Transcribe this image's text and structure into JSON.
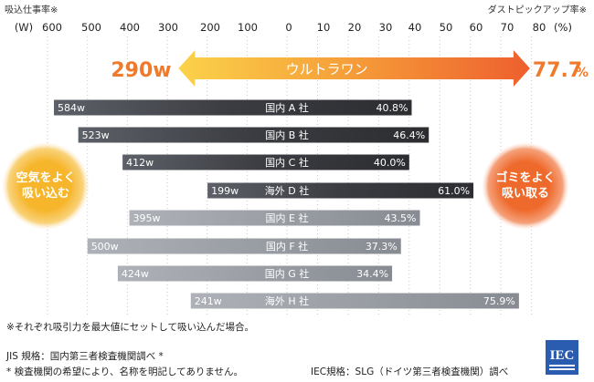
{
  "chart_data": {
    "type": "bar",
    "left_axis_title": "吸込仕事率※",
    "right_axis_title": "ダストピックアップ率※",
    "left_unit": "(W)",
    "right_unit": "(%)",
    "left_ticks": [
      "600",
      "500",
      "400",
      "300",
      "200",
      "100"
    ],
    "right_ticks": [
      "0",
      "10",
      "20",
      "30",
      "40",
      "50",
      "60",
      "70",
      "80"
    ],
    "highlight": {
      "name": "ウルトラワン",
      "suction_label": "290w",
      "dust_label": "77.7",
      "dust_unit": "%",
      "suction_w": 290,
      "dust_pct": 77.7
    },
    "series": [
      {
        "name": "国内 A 社",
        "suction_label": "584w",
        "dust_label": "40.8%",
        "suction_w": 584,
        "dust_pct": 40.8,
        "color": "#3d3f44"
      },
      {
        "name": "国内 B 社",
        "suction_label": "523w",
        "dust_label": "46.4%",
        "suction_w": 523,
        "dust_pct": 46.4,
        "color": "#3d3f44"
      },
      {
        "name": "国内 C 社",
        "suction_label": "412w",
        "dust_label": "40.0%",
        "suction_w": 412,
        "dust_pct": 40.0,
        "color": "#3d3f44"
      },
      {
        "name": "海外 D 社",
        "suction_label": "199w",
        "dust_label": "61.0%",
        "suction_w": 199,
        "dust_pct": 61.0,
        "color": "#3d3f44"
      },
      {
        "name": "国内 E 社",
        "suction_label": "395w",
        "dust_label": "43.5%",
        "suction_w": 395,
        "dust_pct": 43.5,
        "color": "#9b9fa6"
      },
      {
        "name": "国内 F 社",
        "suction_label": "500w",
        "dust_label": "37.3%",
        "suction_w": 500,
        "dust_pct": 37.3,
        "color": "#9b9fa6"
      },
      {
        "name": "国内 G 社",
        "suction_label": "424w",
        "dust_label": "34.4%",
        "suction_w": 424,
        "dust_pct": 34.4,
        "color": "#9b9fa6"
      },
      {
        "name": "海外 H 社",
        "suction_label": "241w",
        "dust_label": "75.9%",
        "suction_w": 241,
        "dust_pct": 75.9,
        "color": "#9b9fa6"
      }
    ],
    "left_bubble": [
      "空気をよく",
      "吸い込む"
    ],
    "right_bubble": [
      "ゴミをよく",
      "吸い取る"
    ]
  },
  "notes": {
    "note1": "※それぞれ吸引力を最大値にセットして吸い込んだ場合。",
    "note2": "JIS 規格：国内第三者検査機関調べ *",
    "note3": "* 検査機関の希望により、名称を明記してありません。",
    "note4": "IEC規格：SLG（ドイツ第三者検査機関）調べ",
    "logo_text": "IEC"
  },
  "colors": {
    "accent_orange": "#f07a2b",
    "bubble_yellow": "#f6b52a",
    "bubble_orange": "#ee6a2c",
    "dark_bar": "#3d3f44",
    "light_bar": "#9b9fa6",
    "logo_blue": "#2a5db0"
  }
}
